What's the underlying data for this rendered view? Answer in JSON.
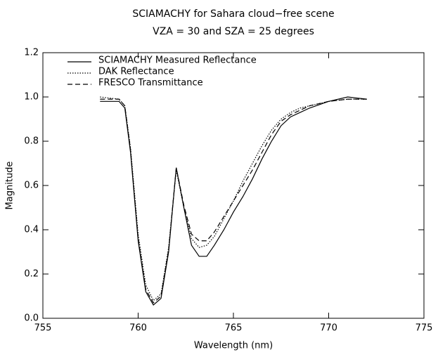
{
  "chart_data": {
    "type": "line",
    "title": "SCIAMACHY for Sahara cloud−free scene",
    "subtitle": "VZA  = 30 and SZA = 25 degrees",
    "xlabel": "Wavelength (nm)",
    "ylabel": "Magnitude",
    "xlim": [
      755,
      775
    ],
    "xticks": [
      755,
      760,
      765,
      770,
      775
    ],
    "ylim": [
      0,
      1.2
    ],
    "yticks": [
      {
        "value": 0,
        "label": "0.0"
      },
      {
        "value": 0.2,
        "label": "0.2"
      },
      {
        "value": 0.4,
        "label": "0.4"
      },
      {
        "value": 0.6,
        "label": "0.6"
      },
      {
        "value": 0.8,
        "label": "0.8"
      },
      {
        "value": 1.0,
        "label": "1.0"
      },
      {
        "value": 1.2,
        "label": "1.2"
      }
    ],
    "x": [
      758,
      759,
      759.3,
      759.6,
      760,
      760.4,
      760.8,
      761.2,
      761.6,
      762,
      762.4,
      762.8,
      763.2,
      763.6,
      764,
      764.5,
      765,
      765.5,
      766,
      766.5,
      767,
      767.5,
      768,
      768.5,
      769,
      770,
      771,
      772
    ],
    "series": [
      {
        "name": "SCIAMACHY Measured Reflectance",
        "color": "#000000",
        "dash": "solid",
        "values": [
          0.98,
          0.98,
          0.95,
          0.75,
          0.35,
          0.12,
          0.06,
          0.09,
          0.3,
          0.68,
          0.5,
          0.33,
          0.28,
          0.28,
          0.33,
          0.4,
          0.48,
          0.55,
          0.63,
          0.72,
          0.8,
          0.87,
          0.91,
          0.93,
          0.95,
          0.98,
          1.0,
          0.99
        ]
      },
      {
        "name": "DAK Reflectance",
        "color": "#000000",
        "dash": "dotted",
        "values": [
          1.0,
          0.99,
          0.96,
          0.77,
          0.38,
          0.15,
          0.08,
          0.11,
          0.32,
          0.67,
          0.5,
          0.36,
          0.32,
          0.33,
          0.37,
          0.45,
          0.53,
          0.62,
          0.7,
          0.78,
          0.85,
          0.9,
          0.93,
          0.95,
          0.96,
          0.98,
          0.99,
          0.99
        ]
      },
      {
        "name": "FRESCO Transmittance",
        "color": "#000000",
        "dash": "dashed",
        "values": [
          0.99,
          0.99,
          0.96,
          0.76,
          0.36,
          0.13,
          0.07,
          0.1,
          0.31,
          0.68,
          0.51,
          0.38,
          0.35,
          0.35,
          0.39,
          0.46,
          0.53,
          0.6,
          0.67,
          0.75,
          0.83,
          0.89,
          0.92,
          0.94,
          0.96,
          0.98,
          0.99,
          0.99
        ]
      }
    ]
  }
}
